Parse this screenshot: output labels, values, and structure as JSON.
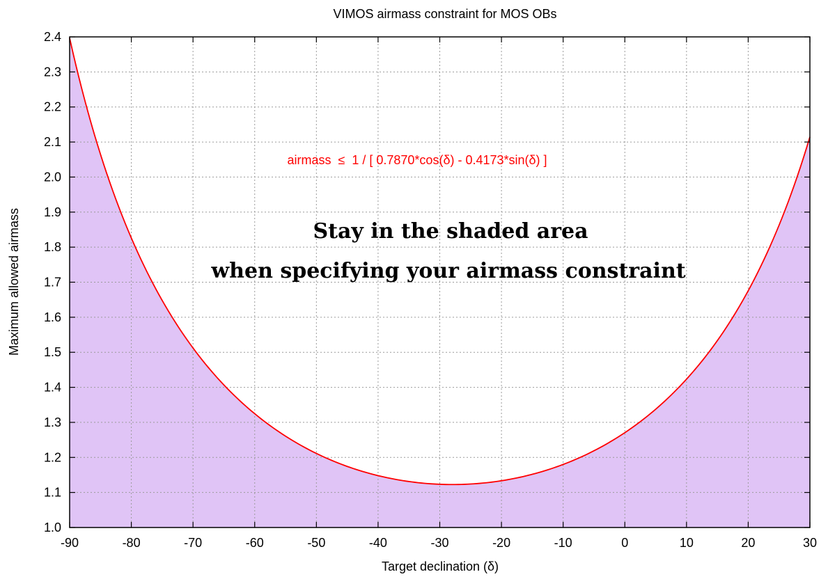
{
  "chart_data": {
    "type": "area",
    "title": "VIMOS airmass constraint for MOS OBs",
    "xlabel": "Target declination (δ)",
    "ylabel": "Maximum allowed airmass",
    "xlim": [
      -90,
      30
    ],
    "ylim": [
      1.0,
      2.4
    ],
    "x_ticks": [
      "-90",
      "-80",
      "-70",
      "-60",
      "-50",
      "-40",
      "-30",
      "-20",
      "-10",
      "0",
      "10",
      "20",
      "30"
    ],
    "y_ticks": [
      "1.0",
      "1.1",
      "1.2",
      "1.3",
      "1.4",
      "1.5",
      "1.6",
      "1.7",
      "1.8",
      "1.9",
      "2.0",
      "2.1",
      "2.2",
      "2.3",
      "2.4"
    ],
    "grid": true,
    "series": [
      {
        "formula_label": "airmass  ≤  1 / [ 0.7870*cos(δ) - 0.4173*sin(δ) ]",
        "a": 0.787,
        "b": 0.4173,
        "x": [
          -90,
          -85,
          -80,
          -75,
          -70,
          -65,
          -60,
          -55,
          -50,
          -45,
          -40,
          -35,
          -30,
          -25,
          -20,
          -15,
          -10,
          -5,
          0,
          5,
          10,
          15,
          20,
          25,
          30
        ],
        "values": [
          2.4,
          2.08,
          1.82,
          1.64,
          1.5,
          1.4,
          1.33,
          1.26,
          1.21,
          1.18,
          1.15,
          1.13,
          1.12,
          1.12,
          1.14,
          1.15,
          1.18,
          1.23,
          1.27,
          1.34,
          1.41,
          1.52,
          1.68,
          1.88,
          2.11
        ],
        "line_color": "#ff0000",
        "fill_color": "#e0c4f6"
      }
    ],
    "annotations": [
      "Stay in the shaded area",
      "when specifying your airmass constraint"
    ]
  }
}
